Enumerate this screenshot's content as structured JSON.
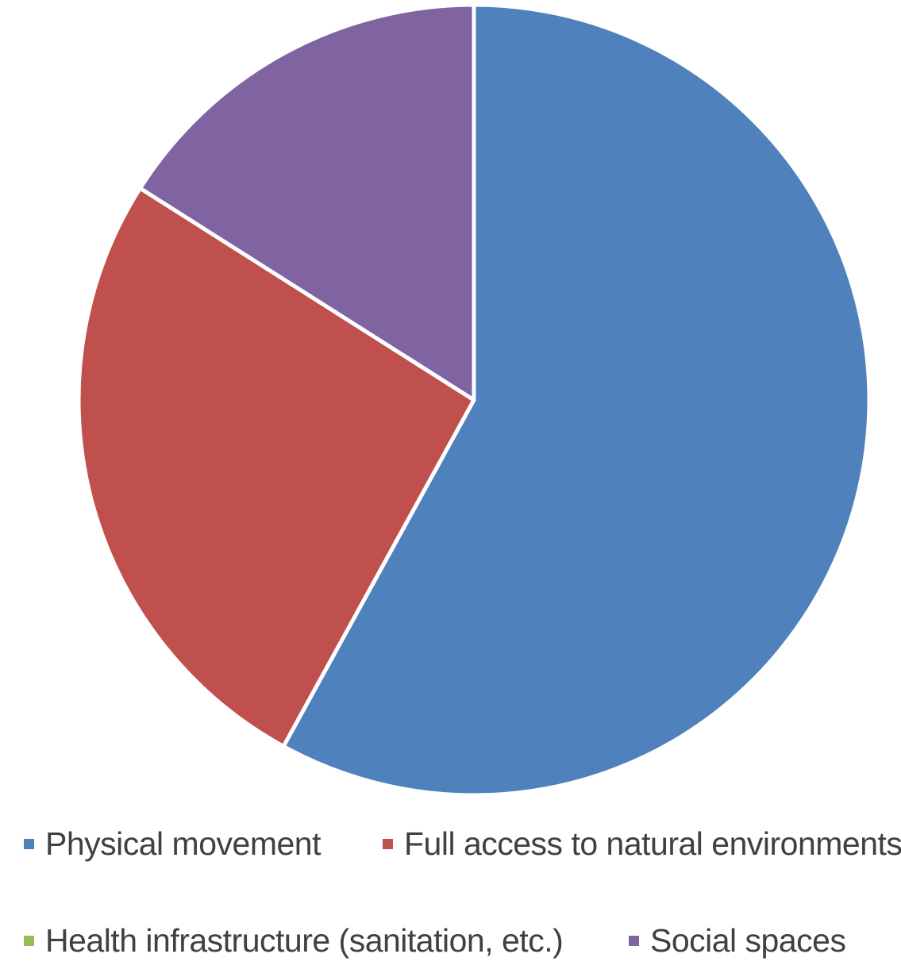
{
  "chart_data": {
    "type": "pie",
    "title": "",
    "start_angle_deg": 0,
    "direction": "clockwise",
    "slices": [
      {
        "label": "Physical movement",
        "value": 58,
        "color": "#4f81bd"
      },
      {
        "label": "Full access to natural environments",
        "value": 26,
        "color": "#c0504d"
      },
      {
        "label": "Health infrastructure (sanitation, etc.)",
        "value": 0,
        "color": "#9bbb59"
      },
      {
        "label": "Social spaces",
        "value": 16,
        "color": "#8064a2"
      }
    ],
    "legend_position": "bottom"
  }
}
